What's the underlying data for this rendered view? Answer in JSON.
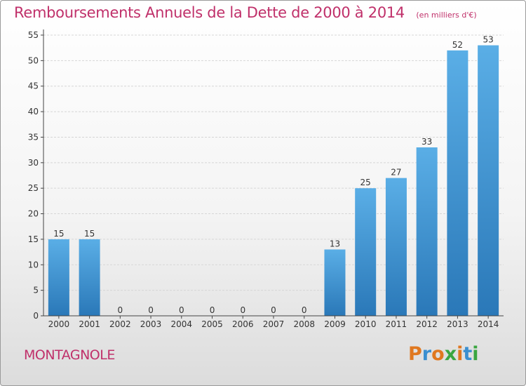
{
  "header": {
    "title": "Remboursements Annuels de la Dette de 2000 à 2014",
    "unit": "(en milliers d'€)"
  },
  "footer": {
    "town": "MONTAGNOLE",
    "logo": "Proxiti"
  },
  "colors": {
    "title": "#c0306a",
    "bar_top": "#5aaee6",
    "bar_bottom": "#2a78b8",
    "grid": "#d6d6d6",
    "axis": "#444444",
    "logo_letters": [
      "#e07820",
      "#3a8fd0",
      "#e07820",
      "#3aa640",
      "#e07820",
      "#3a8fd0",
      "#3aa640"
    ]
  },
  "chart_data": {
    "type": "bar",
    "title": "Remboursements Annuels de la Dette de 2000 à 2014",
    "categories": [
      "2000",
      "2001",
      "2002",
      "2003",
      "2004",
      "2005",
      "2006",
      "2007",
      "2008",
      "2009",
      "2010",
      "2011",
      "2012",
      "2013",
      "2014"
    ],
    "values": [
      15,
      15,
      0,
      0,
      0,
      0,
      0,
      0,
      0,
      13,
      25,
      27,
      33,
      52,
      53
    ],
    "ylim": [
      0,
      55
    ],
    "yticks": [
      0,
      5,
      10,
      15,
      20,
      25,
      30,
      35,
      40,
      45,
      50,
      55
    ],
    "grid": true,
    "xlabel": "",
    "ylabel": ""
  }
}
